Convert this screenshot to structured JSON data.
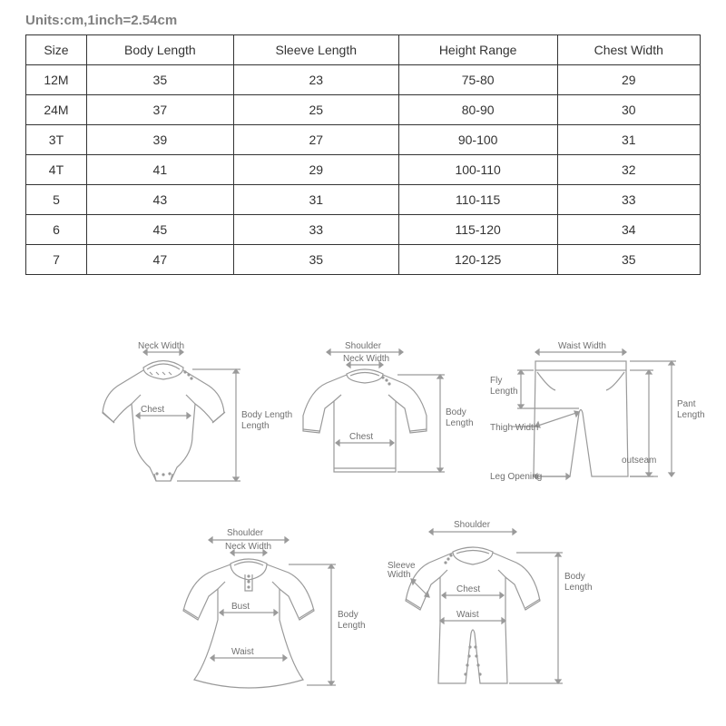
{
  "units_label": "Units:cm,1inch=2.54cm",
  "table": {
    "columns": [
      "Size",
      "Body Length",
      "Sleeve Length",
      "Height Range",
      "Chest Width"
    ],
    "rows": [
      [
        "12M",
        "35",
        "23",
        "75-80",
        "29"
      ],
      [
        "24M",
        "37",
        "25",
        "80-90",
        "30"
      ],
      [
        "3T",
        "39",
        "27",
        "90-100",
        "31"
      ],
      [
        "4T",
        "41",
        "29",
        "100-110",
        "32"
      ],
      [
        "5",
        "43",
        "31",
        "110-115",
        "33"
      ],
      [
        "6",
        "45",
        "33",
        "115-120",
        "34"
      ],
      [
        "7",
        "47",
        "35",
        "120-125",
        "35"
      ]
    ],
    "border_color": "#333333",
    "text_color": "#333333",
    "header_fontsize": 14,
    "cell_fontsize": 14
  },
  "diagrams": {
    "stroke": "#9a9a9a",
    "text_color": "#707070",
    "label_fontsize": 10,
    "items": [
      {
        "id": "bodysuit",
        "labels": {
          "neck_width": "Neck Width",
          "chest": "Chest",
          "body_length": "Body Length"
        }
      },
      {
        "id": "top",
        "labels": {
          "shoulder": "Shoulder",
          "neck_width": "Neck Width",
          "chest": "Chest",
          "body_length": "Body Length"
        }
      },
      {
        "id": "pants",
        "labels": {
          "waist_width": "Waist Width",
          "fly_length": "Fly Length",
          "thigh_width": "Thigh Width",
          "leg_opening": "Leg Opening",
          "outseam": "outseam",
          "pant_length": "Pant Length"
        }
      },
      {
        "id": "dress",
        "labels": {
          "shoulder": "Shoulder",
          "neck_width": "Neck Width",
          "bust": "Bust",
          "waist": "Waist",
          "body_length": "Body Length"
        }
      },
      {
        "id": "romper",
        "labels": {
          "shoulder": "Shoulder",
          "sleeve_width": "Sleeve Width",
          "chest": "Chest",
          "waist": "Waist",
          "body_length": "Body Length"
        }
      }
    ]
  }
}
